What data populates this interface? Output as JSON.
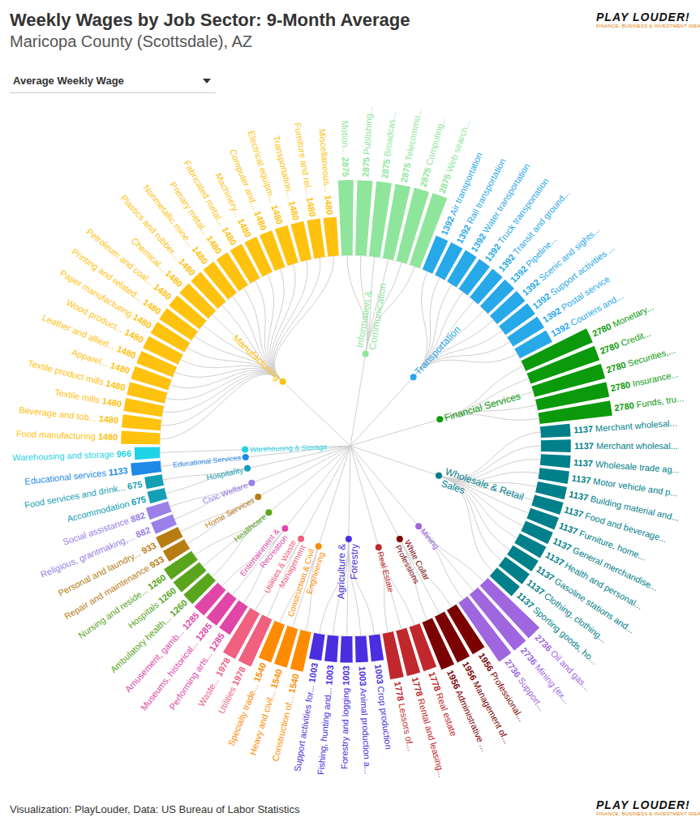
{
  "chart_data": {
    "type": "radial_bar",
    "title": "Weekly Wages by Job Sector: 9-Month Average",
    "subtitle": "Maricopa County (Scottsdale), AZ",
    "dropdown_label": "Average Weekly Wage",
    "source": "Visualization: PlayLouder, Data: US Bureau of Labor Statistics",
    "logo": {
      "name": "PLAY LOUDER!",
      "tagline": "FINANCE, BUSINESS & INVESTMENT IDEAS"
    },
    "ylim": [
      0,
      2875
    ],
    "yticks": [],
    "tick_labels": false,
    "grid": false,
    "data_labels": true,
    "series": [
      {
        "name": "Information &\nCommunication",
        "color": "#8ee59b",
        "categories": [
          "Motion...",
          "Publishing...",
          "Broadcas...",
          "Telecommu...",
          "Computing...",
          "Web search..."
        ],
        "values": [
          2875,
          2875,
          2875,
          2875,
          2875,
          2875
        ]
      },
      {
        "name": "Transportation",
        "color": "#27a8e9",
        "categories": [
          "Air transportation",
          "Rail transportation",
          "Water transportation",
          "Truck transportation",
          "Transit and ground...",
          "Pipeline...",
          "Scenic and sights...",
          "Support activities ...",
          "Postal service",
          "Couriers and..."
        ],
        "values": [
          1392,
          1392,
          1392,
          1392,
          1392,
          1392,
          1392,
          1392,
          1392,
          1392
        ]
      },
      {
        "name": "Financial Services",
        "color": "#0b9a0b",
        "categories": [
          "Monetary...",
          "Credit...",
          "Securities,...",
          "Insurance...",
          "Funds, tru..."
        ],
        "values": [
          2780,
          2780,
          2780,
          2780,
          2780
        ]
      },
      {
        "name": "Wholesale & Retail\nSales",
        "color": "#00808a",
        "categories": [
          "Merchant wholesal...",
          "Merchant wholesal...",
          "Wholesale trade ag...",
          "Motor vehicle and p...",
          "Building material and...",
          "Food and beverage...",
          "Furniture, home...",
          "General merchandise...",
          "Health and personal...",
          "Gasoline stations and...",
          "Clothing, clothing...",
          "Sporting goods, ho..."
        ],
        "values": [
          1137,
          1137,
          1137,
          1137,
          1137,
          1137,
          1137,
          1137,
          1137,
          1137,
          1137,
          1137
        ]
      },
      {
        "name": "Mining",
        "color": "#a066e0",
        "categories": [
          "Oil and gas...",
          "Mining (ex...",
          "Support..."
        ],
        "values": [
          2736,
          2736,
          2736
        ]
      },
      {
        "name": "White Collar\nProfessions",
        "color": "#7b0000",
        "categories": [
          "Professional...",
          "Management of...",
          "Administrative ..."
        ],
        "values": [
          1956,
          1956,
          1956
        ]
      },
      {
        "name": "Real Estate",
        "color": "#c0282d",
        "categories": [
          "Real estate",
          "Rental and leasing...",
          "Lessors of..."
        ],
        "values": [
          1778,
          1778,
          1778
        ]
      },
      {
        "name": "Agriculture &\nForestry",
        "color": "#4a2ee0",
        "categories": [
          "Crop production",
          "Animal production a...",
          "Forestry and logging",
          "Fishing, hunting and...",
          "Support activities for..."
        ],
        "values": [
          1003,
          1003,
          1003,
          1003,
          1003
        ]
      },
      {
        "name": "Construction & Civil\nEngineering",
        "color": "#ff8c00",
        "categories": [
          "Construction of...",
          "Heavy and civil...",
          "Specialty trade..."
        ],
        "values": [
          1540,
          1540,
          1540
        ]
      },
      {
        "name": "Utilities & Waste\nManagement",
        "color": "#f0607f",
        "categories": [
          "Utilities",
          "Waste..."
        ],
        "values": [
          1978,
          1978
        ]
      },
      {
        "name": "Entertainment &\nRecreation",
        "color": "#e046a8",
        "categories": [
          "Performing arts...",
          "Museums, historical...",
          "Amusement, gamb..."
        ],
        "values": [
          1285,
          1285,
          1285
        ]
      },
      {
        "name": "Healthcare",
        "color": "#5aa51c",
        "categories": [
          "Ambulatory health...",
          "Hospitals",
          "Nursing and reside..."
        ],
        "values": [
          1260,
          1260,
          1260
        ]
      },
      {
        "name": "Home Services",
        "color": "#b87d12",
        "categories": [
          "Repair and maintenance",
          "Personal and laundry..."
        ],
        "values": [
          933,
          933
        ]
      },
      {
        "name": "Civic Welfare",
        "color": "#9a80e8",
        "categories": [
          "Religious, grantmaking,...",
          "Social assistance"
        ],
        "values": [
          882,
          882
        ]
      },
      {
        "name": "Hospitality",
        "color": "#14a0b4",
        "categories": [
          "Accommodation",
          "Food services and drink..."
        ],
        "values": [
          675,
          675
        ]
      },
      {
        "name": "Educational Services",
        "color": "#1e8ae8",
        "categories": [
          "Educational services"
        ],
        "values": [
          1133
        ]
      },
      {
        "name": "Warehousing & Storage",
        "color": "#1fd3e6",
        "categories": [
          "Warehousing and storage"
        ],
        "values": [
          966
        ]
      },
      {
        "name": "Manufacturing",
        "color": "#ffc20e",
        "categories": [
          "Food manufacturing",
          "Beverage and tob...",
          "Textile mills",
          "Textile product mills",
          "Apparel...",
          "Leather and allied...",
          "Wood product...",
          "Paper manufacturing",
          "Printing and related...",
          "Petroleum and coal...",
          "Chemical...",
          "Plastics and rubber...",
          "Nonmetallic mine...",
          "Primary metal...",
          "Fabricated metal...",
          "Machinery...",
          "Computer and...",
          "Electrical equipm...",
          "Transportation...",
          "Furniture and rel...",
          "Miscellaneous..."
        ],
        "values": [
          1480,
          1480,
          1480,
          1480,
          1480,
          1480,
          1480,
          1480,
          1480,
          1480,
          1480,
          1480,
          1480,
          1480,
          1480,
          1480,
          1480,
          1480,
          1480,
          1480,
          1480
        ]
      }
    ]
  }
}
